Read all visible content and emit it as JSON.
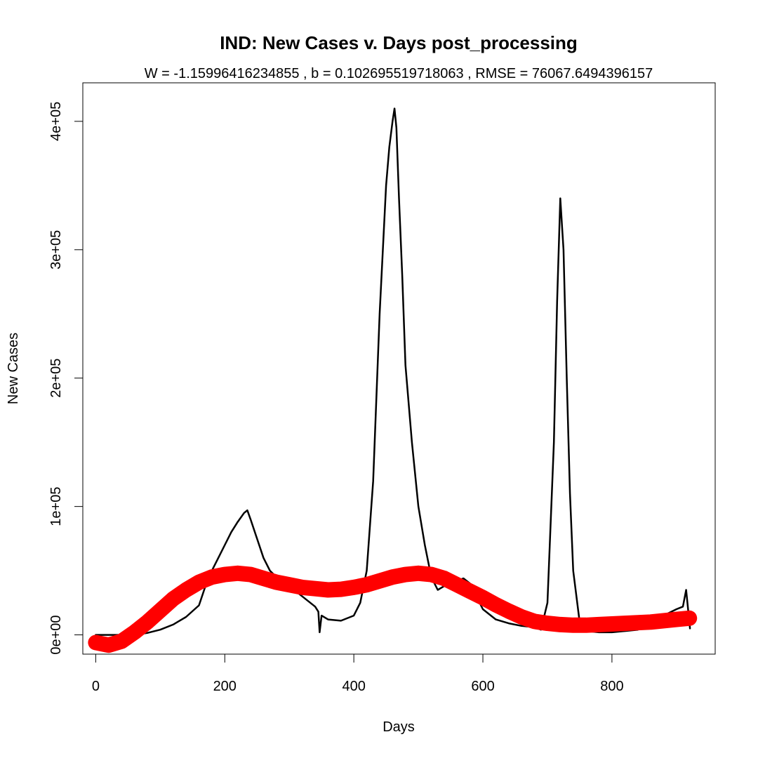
{
  "chart_data": {
    "type": "line",
    "title": "IND: New Cases v. Days post_processing",
    "subtitle": "W = -1.15996416234855 , b = 0.102695519718063 , RMSE = 76067.6494396157",
    "xlabel": "Days",
    "ylabel": "New Cases",
    "xlim": [
      -20,
      960
    ],
    "ylim": [
      -15000,
      430000
    ],
    "x_ticks": [
      0,
      200,
      400,
      600,
      800
    ],
    "x_tick_labels": [
      "0",
      "200",
      "400",
      "600",
      "800"
    ],
    "y_ticks": [
      0,
      100000,
      200000,
      300000,
      400000
    ],
    "y_tick_labels": [
      "0e+00",
      "1e+05",
      "2e+05",
      "3e+05",
      "4e+05"
    ],
    "grid": false,
    "legend": "none",
    "series": [
      {
        "style": "thin black line",
        "color": "#000000",
        "x": [
          0,
          20,
          40,
          60,
          80,
          100,
          120,
          140,
          160,
          170,
          180,
          190,
          200,
          210,
          220,
          230,
          235,
          240,
          250,
          260,
          270,
          280,
          290,
          300,
          320,
          340,
          345,
          347,
          350,
          360,
          380,
          400,
          410,
          420,
          430,
          440,
          450,
          455,
          460,
          463,
          466,
          470,
          475,
          480,
          490,
          500,
          510,
          520,
          530,
          540,
          550,
          560,
          570,
          580,
          590,
          600,
          620,
          640,
          660,
          680,
          690,
          700,
          710,
          715,
          720,
          725,
          730,
          735,
          740,
          750,
          760,
          780,
          800,
          820,
          840,
          860,
          880,
          900,
          910,
          915,
          920,
          921
        ],
        "y": [
          0,
          0,
          0,
          0,
          1500,
          4000,
          8000,
          14000,
          23000,
          38000,
          50000,
          60000,
          70000,
          80000,
          88000,
          95000,
          97000,
          90000,
          75000,
          60000,
          50000,
          45000,
          42000,
          38000,
          30000,
          22000,
          18000,
          2000,
          15000,
          12000,
          11000,
          15000,
          25000,
          50000,
          120000,
          250000,
          350000,
          380000,
          400000,
          410000,
          395000,
          340000,
          280000,
          210000,
          150000,
          100000,
          70000,
          45000,
          35000,
          38000,
          40000,
          42000,
          44000,
          40000,
          30000,
          20000,
          12000,
          9000,
          7000,
          6000,
          4000,
          25000,
          150000,
          260000,
          340000,
          300000,
          200000,
          110000,
          50000,
          10000,
          3000,
          2000,
          2000,
          3000,
          4000,
          8000,
          15000,
          20000,
          22000,
          35000,
          10000,
          5000
        ]
      },
      {
        "style": "thick red fitted curve",
        "color": "#ff0000",
        "x": [
          0,
          20,
          40,
          60,
          80,
          100,
          120,
          140,
          160,
          180,
          200,
          220,
          240,
          260,
          280,
          300,
          320,
          340,
          360,
          380,
          400,
          420,
          440,
          460,
          480,
          500,
          520,
          540,
          560,
          580,
          600,
          620,
          640,
          660,
          680,
          700,
          720,
          740,
          760,
          780,
          800,
          820,
          840,
          860,
          880,
          900,
          920
        ],
        "y": [
          -6000,
          -8000,
          -5000,
          2000,
          10000,
          19000,
          28000,
          35000,
          41000,
          45000,
          47000,
          48000,
          47000,
          44000,
          41000,
          39000,
          37000,
          36000,
          35000,
          35500,
          37000,
          39000,
          42000,
          45000,
          47000,
          48000,
          47000,
          44000,
          39000,
          34000,
          29000,
          23500,
          18500,
          14000,
          10500,
          9000,
          8000,
          7500,
          7500,
          8000,
          8500,
          9000,
          9500,
          10000,
          11000,
          12000,
          13000
        ]
      }
    ]
  }
}
